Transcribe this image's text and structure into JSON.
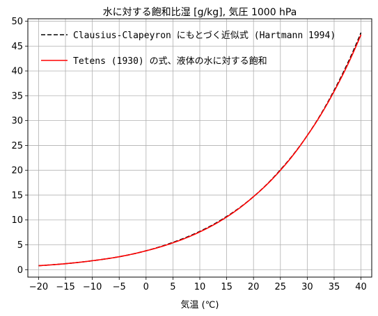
{
  "chart_data": {
    "type": "line",
    "title": "水に対する飽和比湿 [g/kg], 気圧 1000 hPa",
    "xlabel": "気温 (℃)",
    "ylabel": "",
    "xlim": [
      -22,
      42
    ],
    "ylim": [
      -1.5,
      50.5
    ],
    "xticks": [
      -20,
      -15,
      -10,
      -5,
      0,
      5,
      10,
      15,
      20,
      25,
      30,
      35,
      40
    ],
    "yticks": [
      0,
      5,
      10,
      15,
      20,
      25,
      30,
      35,
      40,
      45,
      50
    ],
    "grid": true,
    "legend_position": "top-left",
    "series": [
      {
        "name": "Clausius-Clapeyron にもとづく近似式 (Hartmann 1994)",
        "color": "#000000",
        "style": "dashed",
        "x": [
          -20,
          -15,
          -10,
          -5,
          0,
          5,
          10,
          15,
          20,
          25,
          30,
          35,
          40
        ],
        "y": [
          0.8,
          1.2,
          1.8,
          2.6,
          3.8,
          5.5,
          7.7,
          10.7,
          14.7,
          20.1,
          27.0,
          36.1,
          47.7
        ]
      },
      {
        "name": "Tetens (1930) の式、液体の水に対する飽和",
        "color": "#ff0000",
        "style": "solid",
        "x": [
          -20,
          -15,
          -10,
          -5,
          0,
          5,
          10,
          15,
          20,
          25,
          30,
          35,
          40
        ],
        "y": [
          0.8,
          1.2,
          1.8,
          2.6,
          3.8,
          5.4,
          7.6,
          10.6,
          14.7,
          20.0,
          27.0,
          35.9,
          47.3
        ]
      }
    ]
  }
}
